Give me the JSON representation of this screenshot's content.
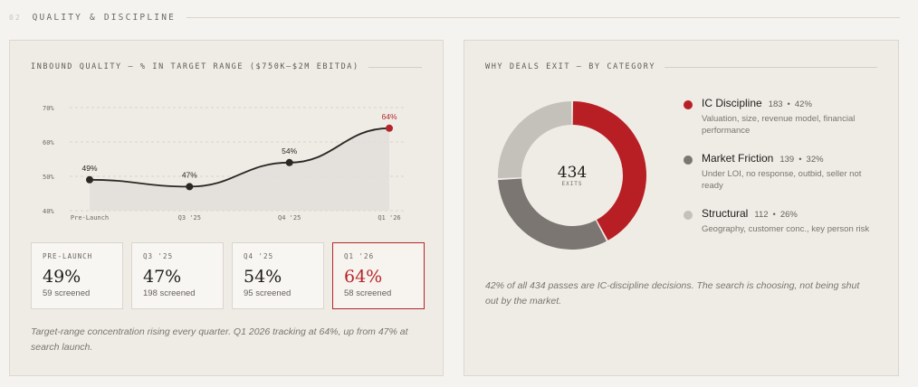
{
  "section": {
    "number": "02",
    "title": "QUALITY & DISCIPLINE"
  },
  "left_panel": {
    "title": "INBOUND QUALITY — % IN TARGET RANGE ($750K–$2M EBITDA)",
    "cards": [
      {
        "label": "PRE-LAUNCH",
        "value": "49%",
        "sub": "59 screened"
      },
      {
        "label": "Q3 '25",
        "value": "47%",
        "sub": "198 screened"
      },
      {
        "label": "Q4 '25",
        "value": "54%",
        "sub": "95 screened"
      },
      {
        "label": "Q1 '26",
        "value": "64%",
        "sub": "58 screened"
      }
    ],
    "caption": "Target-range concentration rising every quarter. Q1 2026 tracking at 64%, up from 47% at search launch."
  },
  "right_panel": {
    "title": "WHY DEALS EXIT — BY CATEGORY",
    "donut_total": "434",
    "donut_label": "EXITS",
    "legend": [
      {
        "name": "IC Discipline",
        "count": "183",
        "pct": "42%",
        "desc": "Valuation, size, revenue model, financial performance",
        "color": "#b81f25"
      },
      {
        "name": "Market Friction",
        "count": "139",
        "pct": "32%",
        "desc": "Under LOI, no response, outbid, seller not ready",
        "color": "#7b7672"
      },
      {
        "name": "Structural",
        "count": "112",
        "pct": "26%",
        "desc": "Geography, customer conc., key person risk",
        "color": "#c4c0ba"
      }
    ],
    "separator": "•",
    "caption": "42% of all 434 passes are IC-discipline decisions. The search is choosing, not being shut out by the market."
  },
  "chart_data": [
    {
      "type": "line",
      "title": "INBOUND QUALITY — % IN TARGET RANGE ($750K–$2M EBITDA)",
      "categories": [
        "Pre-Launch",
        "Q3 '25",
        "Q4 '25",
        "Q1 '26"
      ],
      "values": [
        49,
        47,
        54,
        64
      ],
      "data_labels": [
        "49%",
        "47%",
        "54%",
        "64%"
      ],
      "ylim": [
        40,
        70
      ],
      "y_ticks": [
        "40%",
        "50%",
        "60%",
        "70%"
      ],
      "grid": true,
      "highlight_index": 3,
      "line_color": "#2a2724",
      "highlight_color": "#b5262b",
      "area_color": "#e2dfd9"
    },
    {
      "type": "pie",
      "categories": [
        "IC Discipline",
        "Market Friction",
        "Structural"
      ],
      "values": [
        183,
        139,
        112
      ],
      "colors": [
        "#b81f25",
        "#7b7672",
        "#c4c0ba"
      ]
    }
  ]
}
